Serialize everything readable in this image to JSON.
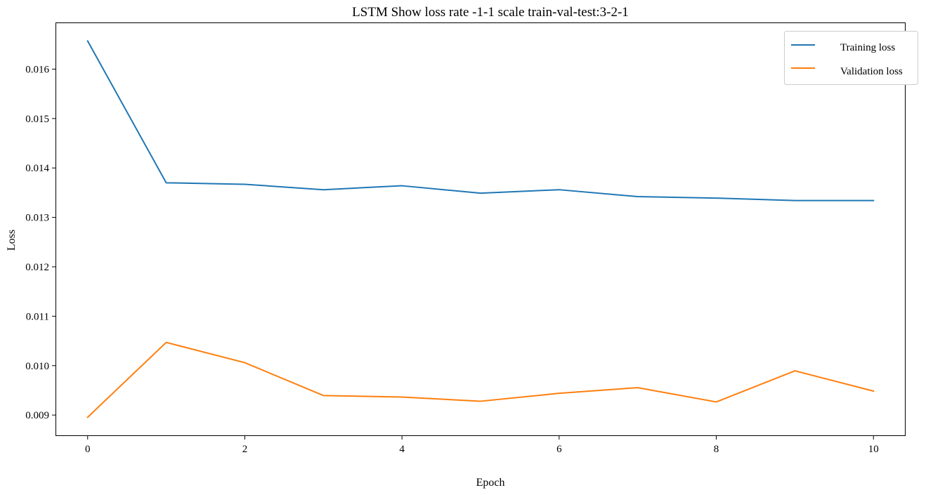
{
  "chart_data": {
    "type": "line",
    "title": "LSTM Show loss rate -1-1 scale train-val-test:3-2-1",
    "xlabel": "Epoch",
    "ylabel": "Loss",
    "x": [
      0,
      1,
      2,
      3,
      4,
      5,
      6,
      7,
      8,
      9,
      10
    ],
    "xlim": [
      -0.4,
      10.4
    ],
    "ylim": [
      0.00859,
      0.01693
    ],
    "xticks": [
      0,
      2,
      4,
      6,
      8,
      10
    ],
    "xtick_labels": [
      "0",
      "2",
      "4",
      "6",
      "8",
      "10"
    ],
    "yticks": [
      0.009,
      0.01,
      0.011,
      0.012,
      0.013,
      0.014,
      0.015,
      0.016
    ],
    "ytick_labels": [
      "0.009",
      "0.010",
      "0.011",
      "0.012",
      "0.013",
      "0.014",
      "0.015",
      "0.016"
    ],
    "grid": false,
    "legend_position": "top-right",
    "series": [
      {
        "name": "Training loss",
        "color": "#1f77b4",
        "values": [
          0.01657,
          0.0137,
          0.01367,
          0.01356,
          0.01364,
          0.01349,
          0.01356,
          0.01342,
          0.01339,
          0.01334,
          0.01334
        ]
      },
      {
        "name": "Validation loss",
        "color": "#ff7f0e",
        "values": [
          0.008955,
          0.01047,
          0.01006,
          0.009395,
          0.009365,
          0.00928,
          0.00944,
          0.009555,
          0.009265,
          0.009895,
          0.009485
        ]
      }
    ]
  }
}
